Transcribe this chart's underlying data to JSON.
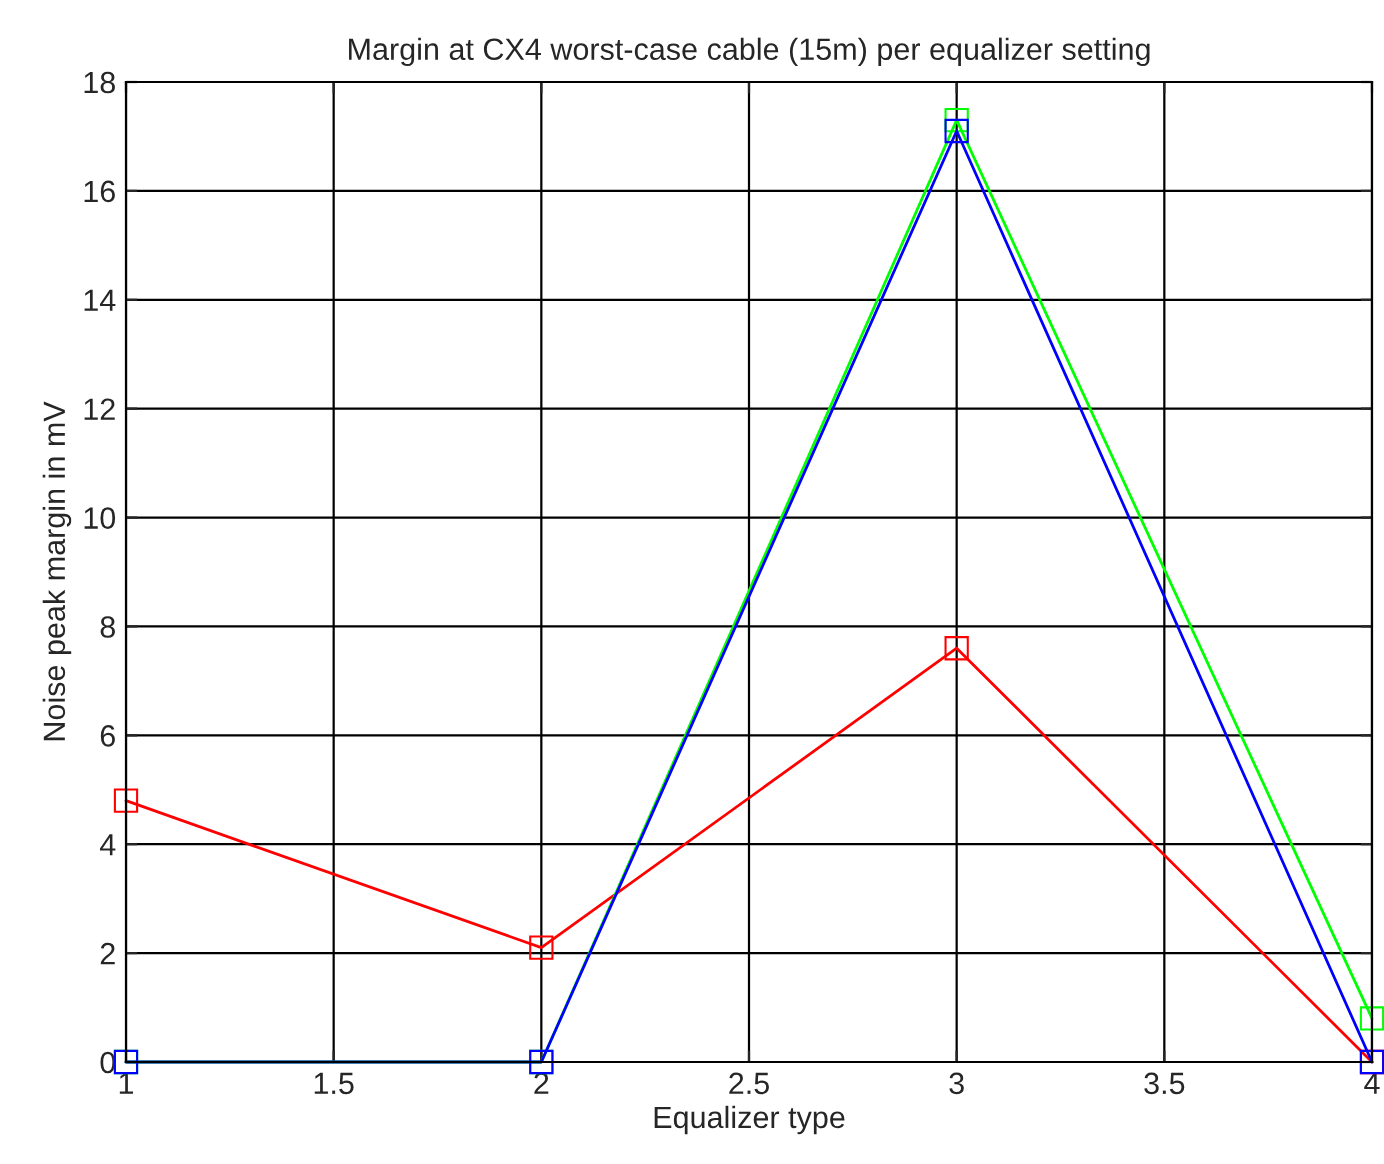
{
  "chart_data": {
    "type": "line",
    "title": "Margin at CX4 worst-case cable (15m) per equalizer setting",
    "xlabel": "Equalizer type",
    "ylabel": "Noise peak margin in mV",
    "x": [
      1,
      2,
      3,
      4
    ],
    "series": [
      {
        "color": "#ff0000",
        "values": [
          4.8,
          2.1,
          7.6,
          0
        ]
      },
      {
        "color": "#00ff00",
        "values": [
          0,
          0,
          17.3,
          0.8
        ]
      },
      {
        "color": "#0000ff",
        "values": [
          0,
          0,
          17.1,
          0
        ]
      }
    ],
    "xlim": [
      1,
      4
    ],
    "xticks": [
      1,
      1.5,
      2,
      2.5,
      3,
      3.5,
      4
    ],
    "ylim": [
      0,
      18
    ],
    "yticks": [
      0,
      2,
      4,
      6,
      8,
      10,
      12,
      14,
      16,
      18
    ],
    "grid": true,
    "marker": "square",
    "line_style": "solid",
    "legend": false
  }
}
